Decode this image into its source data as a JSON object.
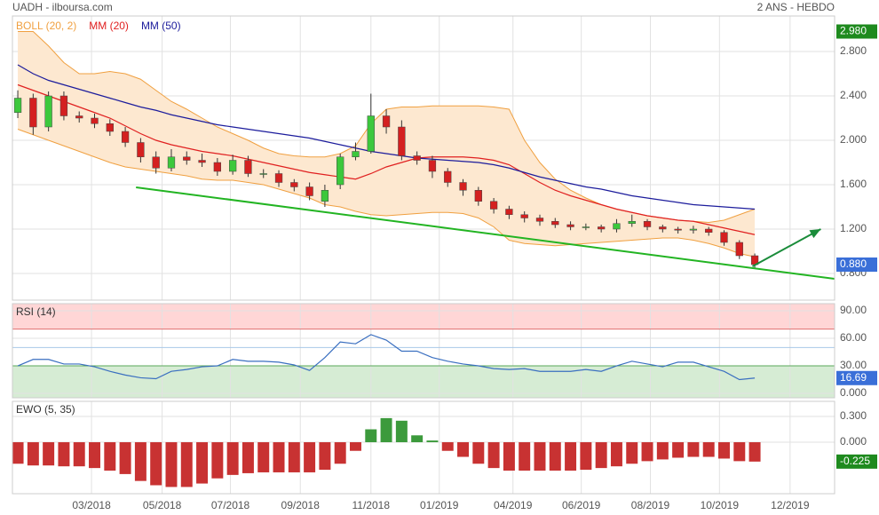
{
  "header": {
    "title": "UADH - ilboursa.com",
    "period": "2 ANS - HEBDO"
  },
  "chart_data": [
    {
      "type": "candlestick",
      "x": [
        0,
        2,
        4,
        6,
        8,
        10,
        12,
        14,
        16,
        18,
        20,
        22,
        24,
        26,
        28,
        30,
        32,
        34,
        36,
        38,
        40,
        42,
        44,
        46,
        48,
        50,
        52,
        54,
        56,
        58,
        60,
        62,
        64,
        66,
        68,
        70,
        72,
        74,
        76,
        78,
        80,
        82,
        84,
        86,
        88,
        90,
        92,
        94,
        96
      ],
      "open": [
        2.25,
        2.38,
        2.12,
        2.4,
        2.22,
        2.2,
        2.15,
        2.08,
        1.98,
        1.85,
        1.75,
        1.85,
        1.82,
        1.8,
        1.72,
        1.82,
        1.7,
        1.7,
        1.62,
        1.58,
        1.45,
        1.6,
        1.85,
        1.9,
        2.22,
        2.12,
        1.86,
        1.82,
        1.72,
        1.62,
        1.55,
        1.45,
        1.38,
        1.33,
        1.3,
        1.27,
        1.24,
        1.22,
        1.22,
        1.2,
        1.25,
        1.27,
        1.22,
        1.2,
        1.19,
        1.2,
        1.17,
        1.08,
        0.96
      ],
      "high": [
        2.45,
        2.42,
        2.44,
        2.44,
        2.26,
        2.24,
        2.19,
        2.12,
        2.02,
        1.9,
        1.92,
        1.9,
        1.88,
        1.84,
        1.87,
        1.86,
        1.74,
        1.73,
        1.65,
        1.62,
        1.6,
        1.88,
        1.98,
        2.42,
        2.28,
        2.18,
        1.9,
        1.86,
        1.75,
        1.65,
        1.58,
        1.48,
        1.41,
        1.36,
        1.33,
        1.3,
        1.27,
        1.25,
        1.24,
        1.29,
        1.33,
        1.29,
        1.24,
        1.22,
        1.23,
        1.22,
        1.19,
        1.1,
        0.98
      ],
      "low": [
        2.2,
        2.05,
        2.08,
        2.18,
        2.16,
        2.11,
        2.04,
        1.94,
        1.8,
        1.7,
        1.72,
        1.78,
        1.76,
        1.68,
        1.69,
        1.67,
        1.66,
        1.58,
        1.54,
        1.46,
        1.4,
        1.56,
        1.82,
        1.88,
        2.06,
        1.82,
        1.78,
        1.66,
        1.58,
        1.5,
        1.41,
        1.34,
        1.29,
        1.26,
        1.23,
        1.21,
        1.19,
        1.19,
        1.17,
        1.17,
        1.22,
        1.19,
        1.17,
        1.16,
        1.16,
        1.14,
        1.05,
        0.93,
        0.85
      ],
      "close": [
        2.38,
        2.12,
        2.4,
        2.22,
        2.2,
        2.15,
        2.08,
        1.98,
        1.85,
        1.75,
        1.85,
        1.82,
        1.8,
        1.72,
        1.82,
        1.7,
        1.7,
        1.62,
        1.58,
        1.5,
        1.55,
        1.85,
        1.9,
        2.22,
        2.12,
        1.86,
        1.82,
        1.72,
        1.62,
        1.55,
        1.45,
        1.38,
        1.33,
        1.3,
        1.27,
        1.24,
        1.22,
        1.22,
        1.2,
        1.25,
        1.27,
        1.22,
        1.2,
        1.19,
        1.2,
        1.17,
        1.08,
        0.96,
        0.88
      ],
      "up_color": "#3cc83c",
      "down_color": "#d42020",
      "series": [
        {
          "name": "BOLL (20, 2)",
          "color": "#f0a040",
          "fill": "#fde8d0",
          "upper": [
            2.98,
            2.98,
            2.85,
            2.7,
            2.6,
            2.6,
            2.62,
            2.6,
            2.55,
            2.45,
            2.35,
            2.28,
            2.2,
            2.12,
            2.06,
            2.0,
            1.93,
            1.88,
            1.86,
            1.85,
            1.85,
            1.88,
            1.95,
            2.15,
            2.28,
            2.3,
            2.3,
            2.31,
            2.31,
            2.31,
            2.31,
            2.3,
            2.28,
            2.0,
            1.8,
            1.65,
            1.55,
            1.48,
            1.42,
            1.38,
            1.35,
            1.32,
            1.3,
            1.28,
            1.27,
            1.26,
            1.28,
            1.33,
            1.38
          ],
          "lower": [
            2.1,
            2.05,
            2.0,
            1.95,
            1.9,
            1.85,
            1.8,
            1.76,
            1.74,
            1.72,
            1.7,
            1.68,
            1.65,
            1.64,
            1.64,
            1.62,
            1.6,
            1.56,
            1.52,
            1.48,
            1.42,
            1.4,
            1.36,
            1.33,
            1.32,
            1.33,
            1.34,
            1.35,
            1.35,
            1.34,
            1.3,
            1.22,
            1.1,
            1.07,
            1.06,
            1.05,
            1.06,
            1.07,
            1.08,
            1.09,
            1.1,
            1.11,
            1.12,
            1.12,
            1.1,
            1.07,
            1.03,
            0.98,
            0.95
          ]
        },
        {
          "name": "MM (20)",
          "color": "#e02020",
          "values": [
            2.5,
            2.45,
            2.4,
            2.35,
            2.3,
            2.25,
            2.2,
            2.13,
            2.06,
            2.0,
            1.96,
            1.93,
            1.9,
            1.88,
            1.86,
            1.83,
            1.8,
            1.77,
            1.74,
            1.71,
            1.69,
            1.67,
            1.65,
            1.7,
            1.76,
            1.8,
            1.84,
            1.85,
            1.85,
            1.85,
            1.84,
            1.82,
            1.78,
            1.7,
            1.62,
            1.55,
            1.5,
            1.46,
            1.42,
            1.38,
            1.35,
            1.32,
            1.3,
            1.28,
            1.27,
            1.24,
            1.21,
            1.18,
            1.15
          ]
        },
        {
          "name": "MM (50)",
          "color": "#1c1c9c",
          "values": [
            2.68,
            2.6,
            2.54,
            2.5,
            2.46,
            2.42,
            2.38,
            2.34,
            2.3,
            2.27,
            2.23,
            2.2,
            2.17,
            2.14,
            2.12,
            2.1,
            2.08,
            2.06,
            2.04,
            2.02,
            1.99,
            1.96,
            1.93,
            1.9,
            1.88,
            1.86,
            1.84,
            1.83,
            1.82,
            1.81,
            1.8,
            1.78,
            1.75,
            1.71,
            1.67,
            1.64,
            1.61,
            1.58,
            1.56,
            1.53,
            1.5,
            1.48,
            1.46,
            1.44,
            1.42,
            1.41,
            1.4,
            1.39,
            1.38
          ]
        }
      ],
      "trendline": {
        "x": [
          15.4,
          106.4
        ],
        "values": [
          1.576,
          0.752
        ],
        "color": "#22b422"
      },
      "arrow": {
        "x": [
          95.7,
          104.6
        ],
        "values": [
          0.864,
          1.2
        ],
        "color": "#1a8c3a"
      },
      "xlim": [
        -0.7,
        106.4
      ],
      "ylim": [
        0.56,
        3.12
      ],
      "yticks": [
        {
          "value": 0.8,
          "label": "0.800"
        },
        {
          "value": 1.2,
          "label": "1.200"
        },
        {
          "value": 1.6,
          "label": "1.600"
        },
        {
          "value": 2.0,
          "label": "2.000"
        },
        {
          "value": 2.4,
          "label": "2.400"
        },
        {
          "value": 2.8,
          "label": "2.800"
        }
      ],
      "tags": [
        {
          "value": 2.98,
          "label": "2.980",
          "color": "#1e8a1e"
        },
        {
          "value": 0.88,
          "label": "0.880",
          "color": "#3a6fd8"
        }
      ],
      "grid": true
    },
    {
      "type": "line",
      "title": "RSI (14)",
      "color": "#3a6fc0",
      "x": [
        0,
        2,
        4,
        6,
        8,
        10,
        12,
        14,
        16,
        18,
        20,
        22,
        24,
        26,
        28,
        30,
        32,
        34,
        36,
        38,
        40,
        42,
        44,
        46,
        48,
        50,
        52,
        54,
        56,
        58,
        60,
        62,
        64,
        66,
        68,
        70,
        72,
        74,
        76,
        78,
        80,
        82,
        84,
        86,
        88,
        90,
        92,
        94,
        96
      ],
      "values": [
        30,
        37,
        37,
        32,
        32,
        29,
        24,
        20,
        17,
        16,
        24,
        26,
        29,
        30,
        37,
        35,
        35,
        34,
        31,
        25,
        39,
        56,
        54,
        64,
        58,
        46,
        46,
        39,
        35,
        32,
        30,
        27,
        26,
        27,
        24,
        24,
        24,
        26,
        24,
        30,
        35,
        32,
        29,
        34,
        34,
        29,
        24,
        15,
        16.69
      ],
      "overbought": 70,
      "oversold": 30,
      "midline": 50,
      "overbought_color": "#ffd6d6",
      "oversold_color": "#d6ecd4",
      "xlim": [
        -0.7,
        106.4
      ],
      "ylim": [
        -4.8,
        97.7
      ],
      "yticks": [
        {
          "value": 0,
          "label": "0.000"
        },
        {
          "value": 30,
          "label": "30.00"
        },
        {
          "value": 60,
          "label": "60.00"
        },
        {
          "value": 90,
          "label": "90.00"
        }
      ],
      "tag": {
        "value": 16.69,
        "color": "#3a6fd8"
      }
    },
    {
      "type": "bar",
      "title": "EWO (5, 35)",
      "up_color": "#3c9a3c",
      "down_color": "#c83232",
      "x": [
        0,
        2,
        4,
        6,
        8,
        10,
        12,
        14,
        16,
        18,
        20,
        22,
        24,
        26,
        28,
        30,
        32,
        34,
        36,
        38,
        40,
        42,
        44,
        46,
        48,
        50,
        52,
        54,
        56,
        58,
        60,
        62,
        64,
        66,
        68,
        70,
        72,
        74,
        76,
        78,
        80,
        82,
        84,
        86,
        88,
        90,
        92,
        94,
        96
      ],
      "values": [
        -0.25,
        -0.27,
        -0.27,
        -0.28,
        -0.28,
        -0.3,
        -0.33,
        -0.37,
        -0.45,
        -0.5,
        -0.52,
        -0.52,
        -0.48,
        -0.42,
        -0.38,
        -0.36,
        -0.35,
        -0.35,
        -0.35,
        -0.35,
        -0.32,
        -0.25,
        -0.1,
        0.15,
        0.28,
        0.25,
        0.08,
        0.02,
        -0.1,
        -0.17,
        -0.25,
        -0.3,
        -0.33,
        -0.33,
        -0.33,
        -0.33,
        -0.33,
        -0.32,
        -0.3,
        -0.28,
        -0.25,
        -0.22,
        -0.2,
        -0.18,
        -0.17,
        -0.17,
        -0.19,
        -0.22,
        -0.225
      ],
      "xlim": [
        -0.7,
        106.4
      ],
      "ylim": [
        -0.598,
        0.475
      ],
      "yticks": [
        {
          "value": 0,
          "label": "0.000"
        },
        {
          "value": 0.3,
          "label": "0.300"
        }
      ],
      "xticks": [
        {
          "value": 9.6,
          "label": "03/2018"
        },
        {
          "value": 18.8,
          "label": "05/2018"
        },
        {
          "value": 27.7,
          "label": "07/2018"
        },
        {
          "value": 36.8,
          "label": "09/2018"
        },
        {
          "value": 46,
          "label": "11/2018"
        },
        {
          "value": 54.9,
          "label": "01/2019"
        },
        {
          "value": 64.5,
          "label": "04/2019"
        },
        {
          "value": 73.4,
          "label": "06/2019"
        },
        {
          "value": 82.4,
          "label": "08/2019"
        },
        {
          "value": 91.4,
          "label": "10/2019"
        },
        {
          "value": 100.6,
          "label": "12/2019"
        }
      ],
      "tag": {
        "value": -0.225,
        "label": "-0.225",
        "color": "#1e8a1e"
      }
    }
  ]
}
